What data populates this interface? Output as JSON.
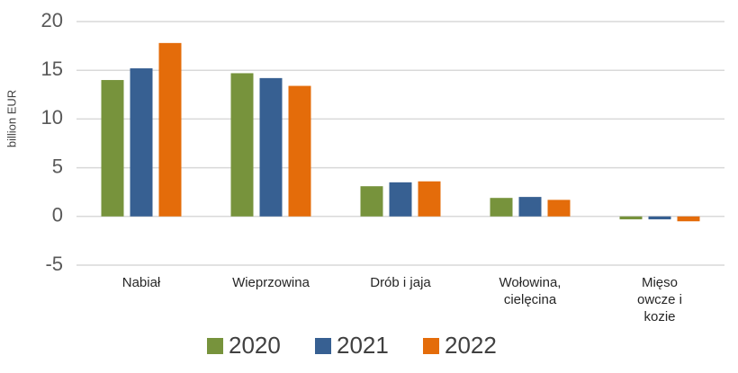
{
  "chart_data": {
    "type": "bar",
    "y_label": "billion EUR",
    "categories": [
      "Nabiał",
      "Wieprzowina",
      "Drób i jaja",
      "Wołowina,\ncielęcina",
      "Mięso\nowcze i\nkozie"
    ],
    "series": [
      {
        "name": "2020",
        "color": "#77933c",
        "values": [
          14.0,
          14.7,
          3.1,
          1.9,
          -0.3
        ]
      },
      {
        "name": "2021",
        "color": "#376092",
        "values": [
          15.2,
          14.2,
          3.5,
          2.0,
          -0.3
        ]
      },
      {
        "name": "2022",
        "color": "#e46c0a",
        "values": [
          17.8,
          13.4,
          3.6,
          1.7,
          -0.5
        ]
      }
    ],
    "ylim": [
      -5,
      20
    ],
    "yticks": [
      -5,
      0,
      5,
      10,
      15,
      20
    ],
    "grid": true,
    "legend": "bottom"
  }
}
